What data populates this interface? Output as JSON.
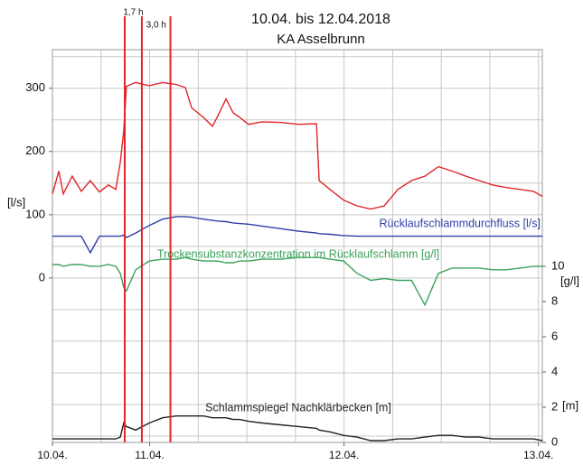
{
  "chart_data": {
    "type": "line",
    "title": "10.04. bis 12.04.2018",
    "subtitle": "KA Asselbrunn",
    "y_label": "[l/s]",
    "y2_labels": [
      "[g/l]",
      "[m]"
    ],
    "x": [
      0.5,
      0.533,
      0.556,
      0.602,
      0.649,
      0.695,
      0.742,
      0.788,
      0.826,
      0.849,
      0.867,
      0.881,
      0.928,
      0.998,
      1.067,
      1.137,
      1.184,
      1.216,
      1.277,
      1.323,
      1.347,
      1.393,
      1.43,
      1.463,
      1.509,
      1.579,
      1.672,
      1.765,
      1.858,
      1.872,
      1.928,
      1.998,
      2.067,
      2.137,
      2.207,
      2.277,
      2.347,
      2.416,
      2.486,
      2.556,
      2.626,
      2.695,
      2.765,
      2.835,
      2.905,
      2.974,
      3.021
    ],
    "xlim": [
      0.5,
      3.02
    ],
    "xticks": [
      {
        "value": 0.5,
        "label": "10.04."
      },
      {
        "value": 1,
        "label": "11.04."
      },
      {
        "value": 2,
        "label": "12.04."
      },
      {
        "value": 3,
        "label": "13.04."
      }
    ],
    "x_gridlines": [
      0.5,
      0.75,
      1,
      1.25,
      1.5,
      1.75,
      2,
      2.25,
      2.5,
      2.75,
      3
    ],
    "ylim": [
      -260,
      361
    ],
    "yticks": [
      0,
      100,
      200,
      300
    ],
    "y_gridlines": [
      -250,
      -200,
      -150,
      -100,
      -50,
      0,
      50,
      100,
      150,
      200,
      250,
      300,
      350
    ],
    "y2lim": [
      0,
      22.3
    ],
    "y2ticks": [
      10,
      8,
      6,
      4,
      2,
      0
    ],
    "grid": true,
    "series": [
      {
        "color": "#e0262a",
        "values": [
          133,
          169,
          133,
          161,
          137,
          154,
          136,
          147,
          140,
          183,
          233,
          303,
          309,
          304,
          309,
          306,
          301,
          269,
          254,
          240,
          254,
          283,
          261,
          254,
          243,
          247,
          246,
          243,
          244,
          154,
          140,
          123,
          114,
          109,
          114,
          140,
          154,
          161,
          176,
          169,
          161,
          154,
          147,
          143,
          140,
          137,
          129
        ]
      },
      {
        "name": "Rücklaufschlammdurchfluss [l/s]",
        "color": "#2f3fa8",
        "values": [
          66,
          66,
          66,
          66,
          66,
          40,
          66,
          66,
          66,
          66,
          68,
          64,
          71,
          83,
          93,
          97,
          97,
          96,
          93,
          91,
          90,
          89,
          87,
          86,
          85,
          82,
          78,
          74,
          71,
          70,
          69,
          67,
          66,
          66,
          66,
          66,
          66,
          66,
          66,
          66,
          66,
          66,
          66,
          66,
          66,
          66,
          66
        ]
      },
      {
        "name": "Trockensubstanzkonzentration im Rücklaufschlamm [g/l]",
        "color": "#3aa35a",
        "axis": "y2",
        "values": [
          10.1,
          10.1,
          10.0,
          10.1,
          10.1,
          10.0,
          10.0,
          10.1,
          10.0,
          9.6,
          8.8,
          8.6,
          9.8,
          10.3,
          10.4,
          10.4,
          10.5,
          10.4,
          10.3,
          10.3,
          10.3,
          10.2,
          10.2,
          10.3,
          10.3,
          10.4,
          10.4,
          10.5,
          10.5,
          10.5,
          10.4,
          10.3,
          9.6,
          9.2,
          9.3,
          9.2,
          9.2,
          7.8,
          9.6,
          9.9,
          9.9,
          9.9,
          9.8,
          9.8,
          9.9,
          10.0,
          10.0
        ]
      },
      {
        "name": "Schlammspiegel Nachklärbecken [m]",
        "color": "#222222",
        "axis": "y2",
        "values": [
          0.2,
          0.2,
          0.2,
          0.2,
          0.2,
          0.2,
          0.2,
          0.2,
          0.2,
          0.3,
          1.1,
          0.9,
          0.7,
          1.1,
          1.4,
          1.5,
          1.5,
          1.5,
          1.5,
          1.4,
          1.4,
          1.4,
          1.3,
          1.3,
          1.2,
          1.1,
          1.0,
          0.9,
          0.8,
          0.7,
          0.6,
          0.4,
          0.3,
          0.1,
          0.1,
          0.2,
          0.2,
          0.3,
          0.4,
          0.4,
          0.3,
          0.3,
          0.2,
          0.2,
          0.2,
          0.2,
          0.1
        ]
      }
    ],
    "markers": {
      "color": "#e0262a",
      "x": [
        0.872,
        0.96,
        1.107
      ],
      "labels": [
        "1,7 h",
        "3,0 h"
      ]
    }
  }
}
